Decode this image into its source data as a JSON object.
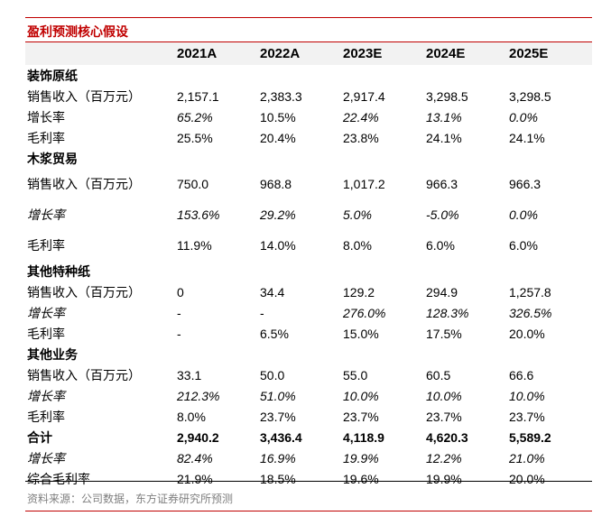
{
  "title": "盈利预测核心假设",
  "columns": [
    "",
    "2021A",
    "2022A",
    "2023E",
    "2024E",
    "2025E"
  ],
  "rows": [
    {
      "type": "section",
      "cells": [
        "装饰原纸",
        "",
        "",
        "",
        "",
        ""
      ]
    },
    {
      "type": "data",
      "cells": [
        "销售收入（百万元）",
        "2,157.1",
        "2,383.3",
        "2,917.4",
        "3,298.5",
        "3,298.5"
      ],
      "italic": [
        false,
        false,
        false,
        false,
        false,
        false
      ]
    },
    {
      "type": "data",
      "cells": [
        "增长率",
        "65.2%",
        "10.5%",
        "22.4%",
        "13.1%",
        "0.0%"
      ],
      "italic": [
        false,
        true,
        false,
        true,
        true,
        true
      ]
    },
    {
      "type": "data",
      "cells": [
        "毛利率",
        "25.5%",
        "20.4%",
        "23.8%",
        "24.1%",
        "24.1%"
      ],
      "italic": [
        false,
        false,
        false,
        false,
        false,
        false
      ]
    },
    {
      "type": "section",
      "cells": [
        "木浆贸易",
        "",
        "",
        "",
        "",
        ""
      ]
    },
    {
      "type": "tall",
      "cells": [
        "销售收入（百万元）",
        "750.0",
        "968.8",
        "1,017.2",
        "966.3",
        "966.3"
      ],
      "italic": [
        false,
        false,
        false,
        false,
        false,
        false
      ]
    },
    {
      "type": "tall",
      "cells": [
        "增长率",
        "153.6%",
        "29.2%",
        "5.0%",
        "-5.0%",
        "0.0%"
      ],
      "italic": [
        true,
        true,
        true,
        true,
        true,
        true
      ]
    },
    {
      "type": "tall",
      "cells": [
        "毛利率",
        "11.9%",
        "14.0%",
        "8.0%",
        "6.0%",
        "6.0%"
      ],
      "italic": [
        false,
        false,
        false,
        false,
        false,
        false
      ]
    },
    {
      "type": "section",
      "cells": [
        "其他特种纸",
        "",
        "",
        "",
        "",
        ""
      ]
    },
    {
      "type": "data",
      "cells": [
        "销售收入（百万元）",
        "0",
        "34.4",
        "129.2",
        "294.9",
        "1,257.8"
      ],
      "italic": [
        false,
        false,
        false,
        false,
        false,
        false
      ]
    },
    {
      "type": "data",
      "cells": [
        "增长率",
        "-",
        "-",
        "276.0%",
        "128.3%",
        "326.5%"
      ],
      "italic": [
        true,
        false,
        false,
        true,
        true,
        true
      ]
    },
    {
      "type": "data",
      "cells": [
        "毛利率",
        "-",
        "6.5%",
        "15.0%",
        "17.5%",
        "20.0%"
      ],
      "italic": [
        false,
        false,
        false,
        false,
        false,
        false
      ]
    },
    {
      "type": "section",
      "cells": [
        "其他业务",
        "",
        "",
        "",
        "",
        ""
      ]
    },
    {
      "type": "data",
      "cells": [
        "销售收入（百万元）",
        "33.1",
        "50.0",
        "55.0",
        "60.5",
        "66.6"
      ],
      "italic": [
        false,
        false,
        false,
        false,
        false,
        false
      ]
    },
    {
      "type": "data",
      "cells": [
        "增长率",
        "212.3%",
        "51.0%",
        "10.0%",
        "10.0%",
        "10.0%"
      ],
      "italic": [
        true,
        true,
        true,
        true,
        true,
        true
      ]
    },
    {
      "type": "data",
      "cells": [
        "毛利率",
        "8.0%",
        "23.7%",
        "23.7%",
        "23.7%",
        "23.7%"
      ],
      "italic": [
        false,
        false,
        false,
        false,
        false,
        false
      ]
    },
    {
      "type": "total",
      "cells": [
        "合计",
        "2,940.2",
        "3,436.4",
        "4,118.9",
        "4,620.3",
        "5,589.2"
      ],
      "italic": [
        false,
        false,
        false,
        false,
        false,
        false
      ]
    },
    {
      "type": "data",
      "cells": [
        "增长率",
        "82.4%",
        "16.9%",
        "19.9%",
        "12.2%",
        "21.0%"
      ],
      "italic": [
        true,
        true,
        true,
        true,
        true,
        true
      ]
    },
    {
      "type": "data",
      "cells": [
        "综合毛利率",
        "21.9%",
        "18.5%",
        "19.6%",
        "19.9%",
        "20.0%"
      ],
      "italic": [
        false,
        false,
        false,
        false,
        false,
        false
      ]
    }
  ],
  "source": "资料来源：公司数据，东方证券研究所预测",
  "colors": {
    "accent": "#c00000",
    "header_bg": "#f2f2f2",
    "source_text": "#7f7f7f"
  }
}
